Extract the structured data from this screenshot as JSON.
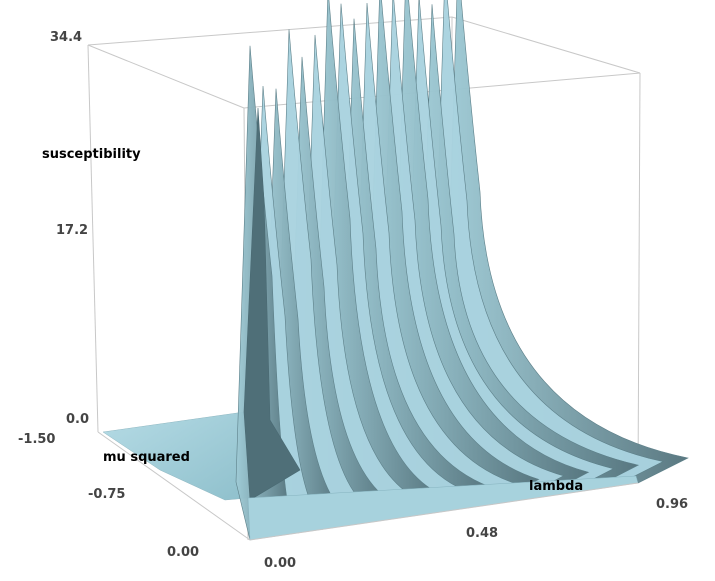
{
  "chart_data": {
    "type": "surface3d",
    "title": "",
    "z_axis": {
      "label": "susceptibility",
      "range": [
        0.0,
        34.4
      ],
      "ticks": [
        "0.0",
        "17.2",
        "34.4"
      ]
    },
    "x_axis": {
      "label": "lambda",
      "range": [
        0.0,
        0.96
      ],
      "ticks": [
        "0.00",
        "0.48",
        "0.96"
      ]
    },
    "y_axis": {
      "label": "mu squared",
      "range": [
        -1.5,
        0.0
      ],
      "ticks": [
        "-1.50",
        "-0.75",
        "0.00"
      ]
    },
    "surface": {
      "description_values": "Near-zero plateau for mu squared < 0; sharp ridge at mu squared ≈ 0 with peaks up to ~33 along lambda, decaying with increasing lambda toward the far edge.",
      "ridge_peaks": [
        {
          "lambda": 0.0,
          "value": 30.5
        },
        {
          "lambda": 0.06,
          "value": 27.0
        },
        {
          "lambda": 0.12,
          "value": 26.5
        },
        {
          "lambda": 0.18,
          "value": 31.0
        },
        {
          "lambda": 0.24,
          "value": 28.5
        },
        {
          "lambda": 0.3,
          "value": 30.0
        },
        {
          "lambda": 0.36,
          "value": 33.5
        },
        {
          "lambda": 0.42,
          "value": 32.0
        },
        {
          "lambda": 0.48,
          "value": 30.5
        },
        {
          "lambda": 0.54,
          "value": 31.5
        },
        {
          "lambda": 0.6,
          "value": 33.0
        },
        {
          "lambda": 0.66,
          "value": 32.0
        },
        {
          "lambda": 0.72,
          "value": 33.5
        },
        {
          "lambda": 0.78,
          "value": 31.0
        },
        {
          "lambda": 0.84,
          "value": 30.0
        },
        {
          "lambda": 0.9,
          "value": 32.5
        },
        {
          "lambda": 0.96,
          "value": 33.0
        }
      ]
    },
    "colors": {
      "surface_light": "#a9d3df",
      "surface_dark": "#4f6f78",
      "box": "#c8c8c8"
    },
    "grid": false
  }
}
